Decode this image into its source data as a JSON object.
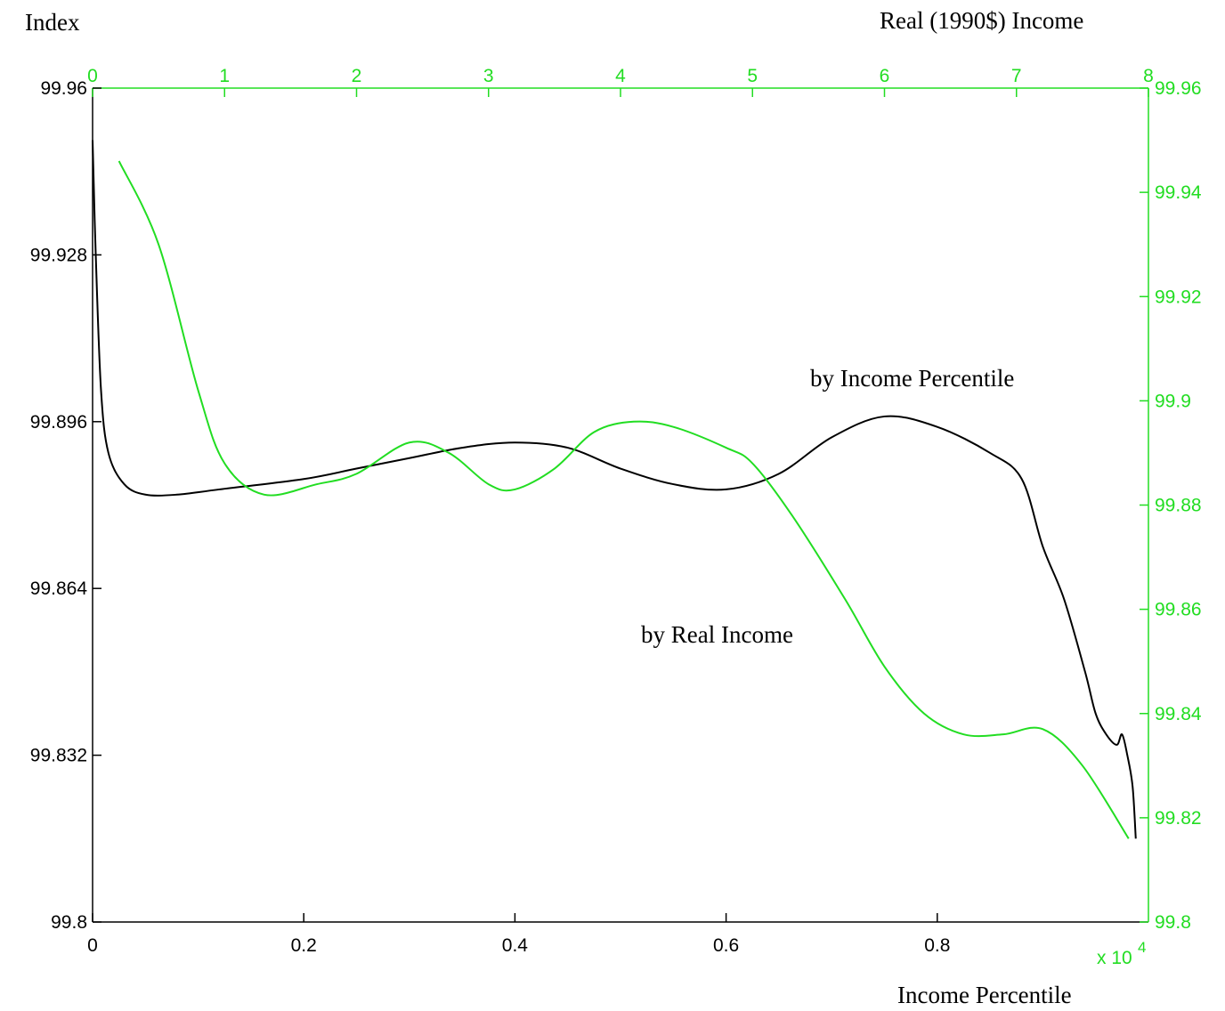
{
  "chart_data": {
    "type": "line",
    "title": "",
    "ylabel": "Index",
    "xlabel": "Income Percentile",
    "x2label": "Real (1990$) Income",
    "xlim": [
      0,
      1
    ],
    "x2lim": [
      0,
      8
    ],
    "x2_exponent": "x 10",
    "x2_exponent_power": "4",
    "ylim": [
      99.8,
      99.96
    ],
    "y2lim": [
      99.8,
      99.96
    ],
    "grid": false,
    "legend": "none",
    "x_ticks": [
      "0",
      "0.2",
      "0.4",
      "0.6",
      "0.8"
    ],
    "x2_ticks": [
      "0",
      "1",
      "2",
      "3",
      "4",
      "5",
      "6",
      "7",
      "8"
    ],
    "y_ticks": [
      "99.8",
      "99.832",
      "99.864",
      "99.896",
      "99.928",
      "99.96"
    ],
    "y2_ticks": [
      "99.8",
      "99.82",
      "99.84",
      "99.86",
      "99.88",
      "99.9",
      "99.92",
      "99.94",
      "99.96"
    ],
    "colors": {
      "primary": "#000000",
      "secondary": "#22dd22"
    },
    "annotations": [
      {
        "text": "by Income Percentile",
        "series": "percentile"
      },
      {
        "text": "by Real Income",
        "series": "real_income"
      }
    ],
    "series": [
      {
        "id": "percentile",
        "axis": "primary",
        "color": "#000000",
        "x": [
          0.0,
          0.003,
          0.008,
          0.015,
          0.03,
          0.05,
          0.08,
          0.12,
          0.2,
          0.25,
          0.3,
          0.35,
          0.4,
          0.45,
          0.5,
          0.55,
          0.6,
          0.65,
          0.7,
          0.75,
          0.8,
          0.85,
          0.88,
          0.9,
          0.92,
          0.94,
          0.95,
          0.96,
          0.97,
          0.975,
          0.98,
          0.985,
          0.988
        ],
        "y": [
          99.95,
          99.928,
          99.902,
          99.89,
          99.884,
          99.882,
          99.882,
          99.883,
          99.885,
          99.887,
          99.889,
          99.891,
          99.892,
          99.891,
          99.887,
          99.884,
          99.883,
          99.886,
          99.893,
          99.897,
          99.895,
          99.89,
          99.885,
          99.872,
          99.862,
          99.848,
          99.84,
          99.836,
          99.834,
          99.836,
          99.832,
          99.826,
          99.816
        ]
      },
      {
        "id": "real_income",
        "axis": "secondary",
        "color": "#22dd22",
        "x": [
          0.2,
          0.5,
          0.8,
          1.0,
          1.3,
          1.7,
          2.0,
          2.4,
          2.7,
          3.0,
          3.2,
          3.5,
          3.8,
          4.1,
          4.4,
          4.8,
          5.0,
          5.3,
          5.7,
          6.0,
          6.3,
          6.6,
          6.9,
          7.2,
          7.5,
          7.85
        ],
        "y": [
          99.946,
          99.93,
          99.902,
          99.888,
          99.882,
          99.884,
          99.886,
          99.892,
          99.89,
          99.884,
          99.883,
          99.887,
          99.894,
          99.896,
          99.895,
          99.891,
          99.888,
          99.878,
          99.862,
          99.849,
          99.84,
          99.836,
          99.836,
          99.837,
          99.83,
          99.816
        ]
      }
    ]
  }
}
